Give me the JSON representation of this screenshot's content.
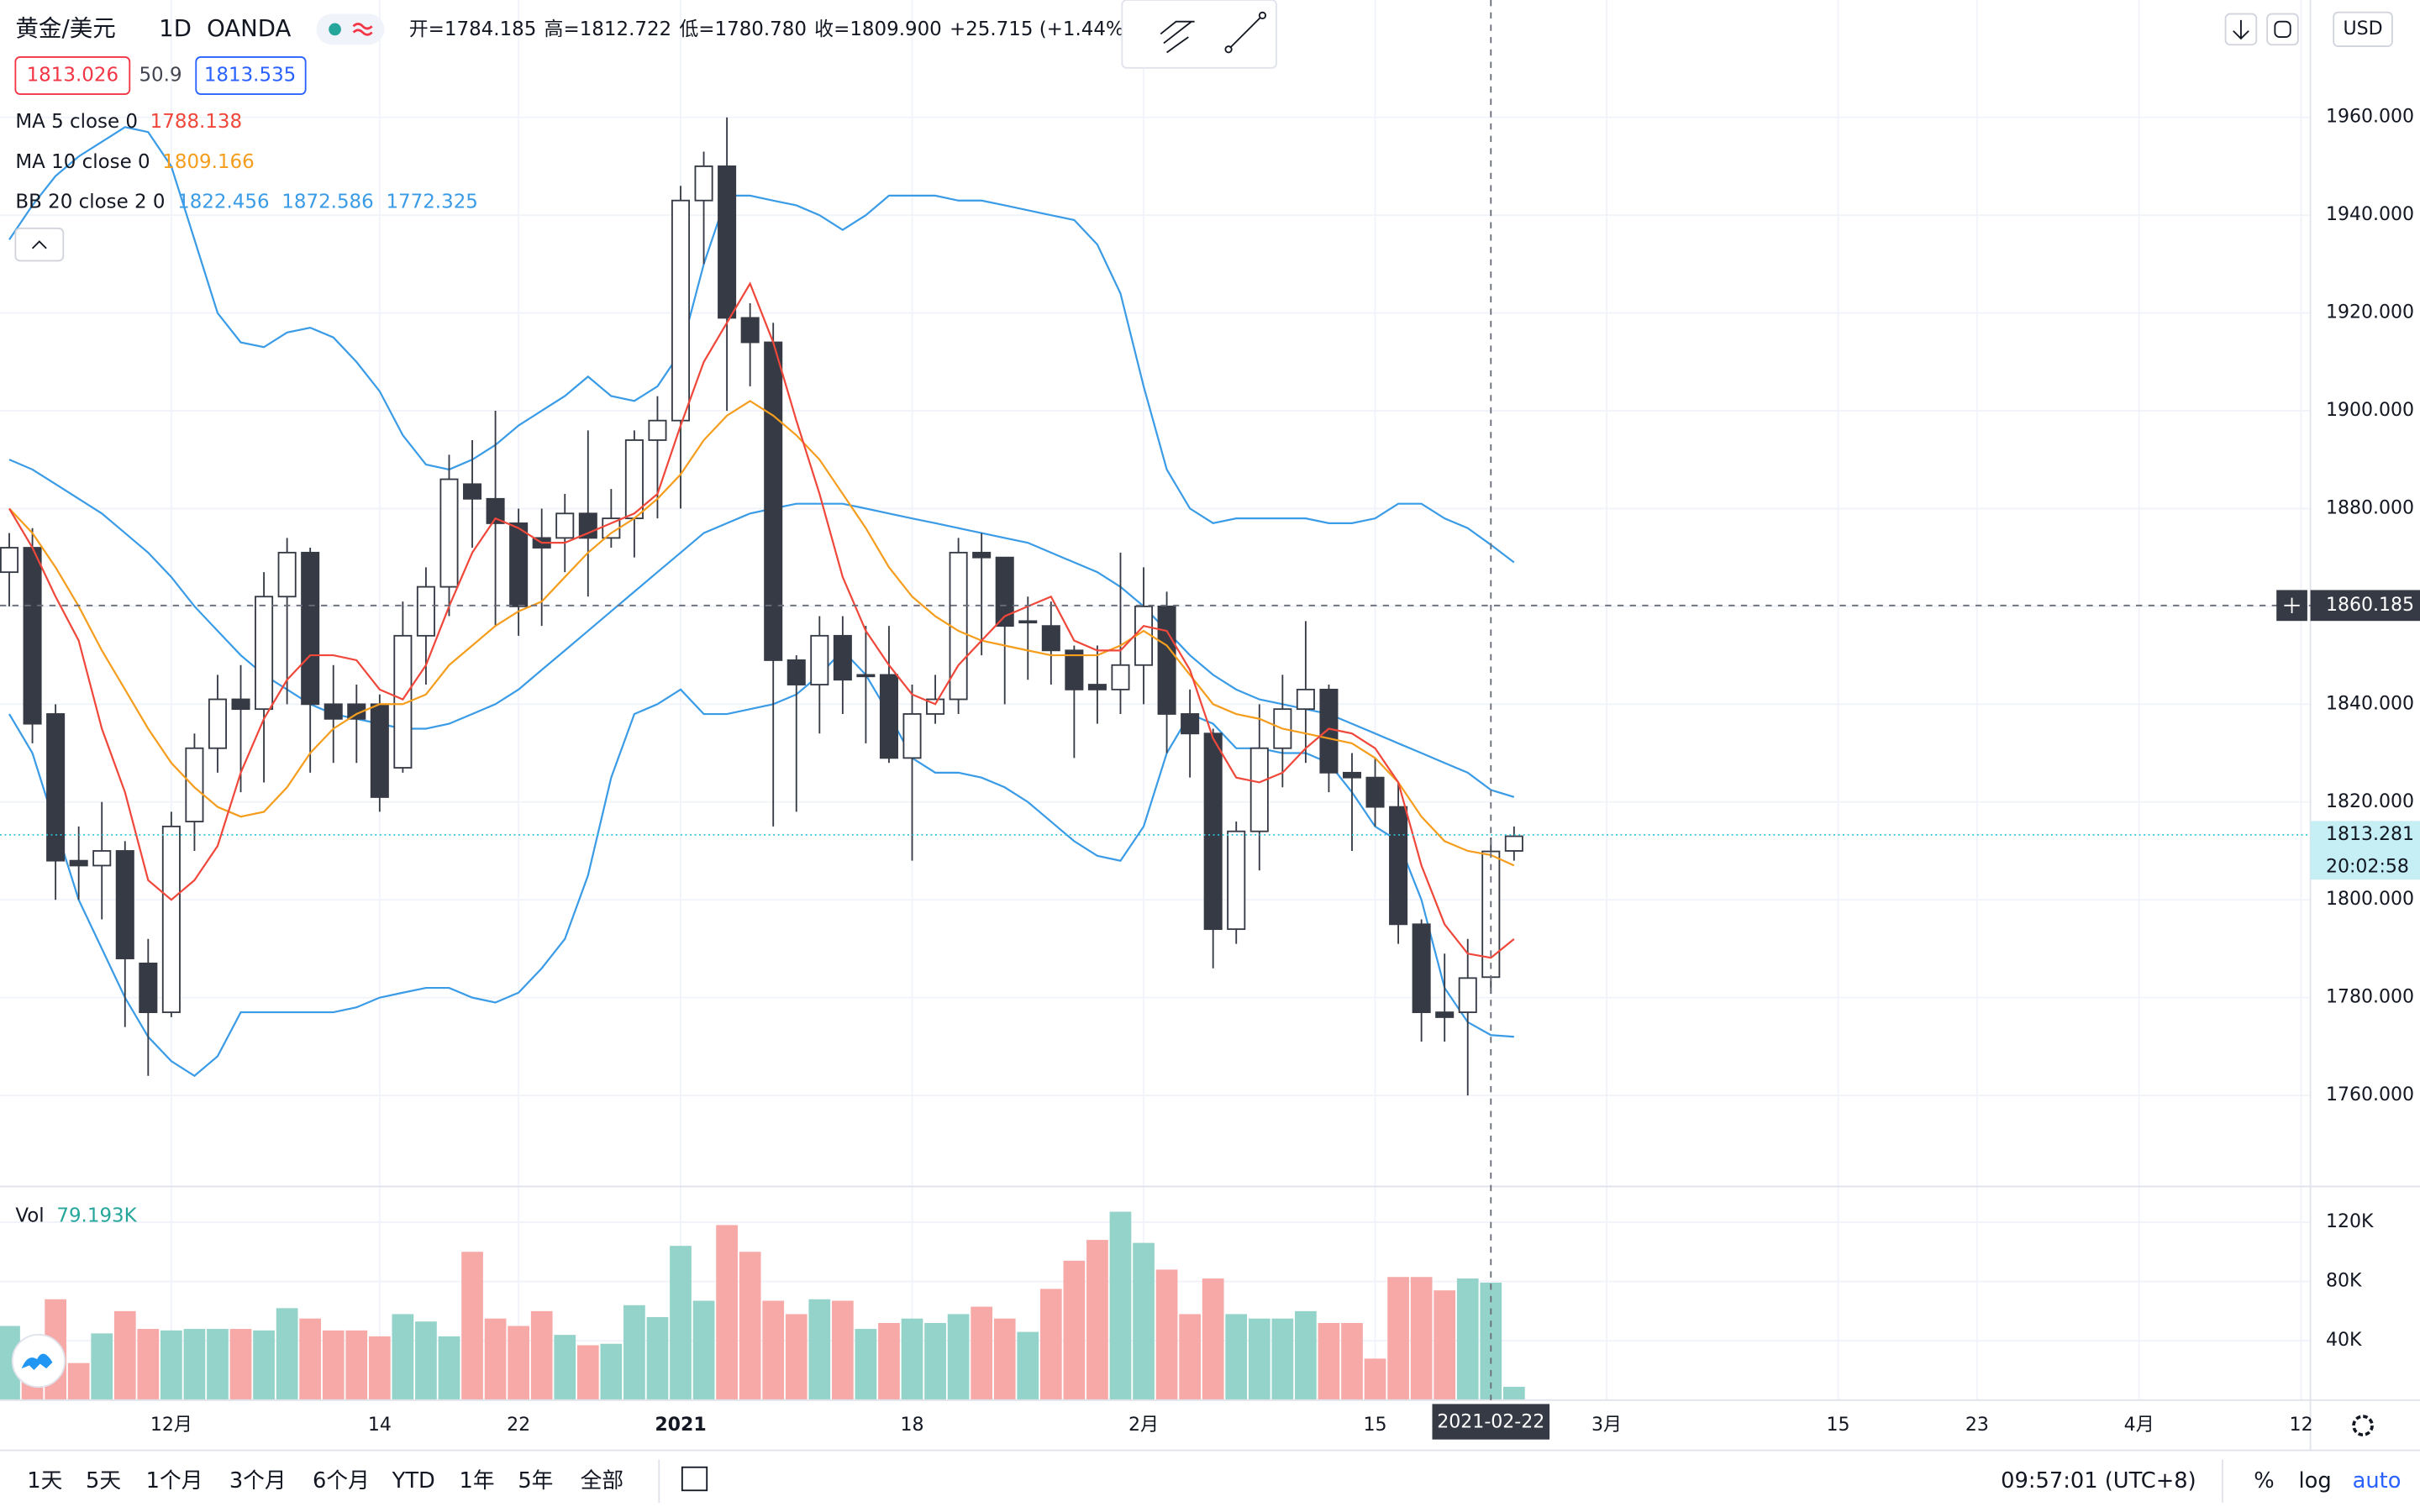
{
  "chart_data": {
    "type": "candlestick",
    "title": "黄金/美元",
    "interval": "1D",
    "source": "OANDA",
    "currency": "USD",
    "header": {
      "open_label": "开=",
      "high_label": "高=",
      "low_label": "低=",
      "close_label": "收=",
      "value_labels": {
        "open": "1784.185",
        "high": "1812.722",
        "low": "1780.780",
        "close": "1809.900"
      },
      "change_text": "+25.715 (+1.44%)"
    },
    "bid": 1813.026,
    "spread": 50.9,
    "ask": 1813.535,
    "categories": [
      null,
      null,
      null,
      null,
      null,
      null,
      null,
      "12月",
      null,
      null,
      null,
      null,
      null,
      null,
      null,
      null,
      "14",
      null,
      null,
      null,
      null,
      null,
      "22",
      null,
      null,
      null,
      null,
      null,
      null,
      "2021",
      null,
      null,
      null,
      null,
      null,
      null,
      null,
      null,
      null,
      "18",
      null,
      null,
      null,
      null,
      null,
      null,
      null,
      null,
      null,
      "2月",
      null,
      null,
      null,
      null,
      null,
      null,
      null,
      null,
      null,
      "15",
      null,
      null,
      null,
      null,
      null,
      null
    ],
    "future_ticks": [
      {
        "value": 69,
        "label": "3月"
      },
      {
        "value": 79,
        "label": "15"
      },
      {
        "value": 85,
        "label": "23"
      },
      {
        "value": 92,
        "label": "4月"
      },
      {
        "value": 99,
        "label": "12"
      }
    ],
    "xlim": [
      -0.4,
      99.4
    ],
    "open": [
      1867,
      1872,
      1838,
      1808,
      1807,
      1810,
      1787,
      1777,
      1816,
      1831,
      1841,
      1839,
      1862,
      1871,
      1840,
      1840,
      1840,
      1827,
      1854,
      1864,
      1885,
      1882,
      1877,
      1874,
      1874,
      1879,
      1874,
      1878,
      1894,
      1898,
      1943,
      1950,
      1919,
      1914,
      1849,
      1844,
      1854,
      1846,
      1846,
      1829,
      1838,
      1841,
      1871,
      1870,
      1857,
      1856,
      1851,
      1844,
      1843,
      1848,
      1860,
      1838,
      1834,
      1794,
      1814,
      1831,
      1839,
      1843,
      1826,
      1825,
      1819,
      1795,
      1777,
      1777,
      1784.185,
      1810
    ],
    "high": [
      1875,
      1876,
      1840,
      1815,
      1820,
      1812,
      1792,
      1818,
      1834,
      1846,
      1848,
      1867,
      1874,
      1872,
      1848,
      1844,
      1842,
      1861,
      1868,
      1891,
      1894,
      1900,
      1880,
      1880,
      1883,
      1896,
      1884,
      1896,
      1903,
      1946,
      1953,
      1960,
      1922,
      1918,
      1850,
      1858,
      1858,
      1856,
      1856,
      1844,
      1846,
      1874,
      1875,
      1870,
      1862,
      1861,
      1852,
      1852,
      1871,
      1868,
      1863,
      1843,
      1835,
      1816,
      1840,
      1846,
      1857,
      1844,
      1830,
      1829,
      1824,
      1796,
      1789,
      1792,
      1812.722,
      1815
    ],
    "low": [
      1860,
      1832,
      1800,
      1800,
      1796,
      1774,
      1764,
      1776,
      1810,
      1826,
      1822,
      1824,
      1840,
      1826,
      1828,
      1828,
      1818,
      1826,
      1844,
      1858,
      1872,
      1856,
      1854,
      1856,
      1867,
      1862,
      1872,
      1870,
      1878,
      1880,
      1930,
      1900,
      1905,
      1815,
      1818,
      1834,
      1838,
      1832,
      1828,
      1808,
      1836,
      1838,
      1850,
      1840,
      1845,
      1844,
      1829,
      1836,
      1838,
      1840,
      1830,
      1825,
      1786,
      1791,
      1806,
      1823,
      1828,
      1822,
      1810,
      1815,
      1791,
      1771,
      1771,
      1760,
      1780.78,
      1808
    ],
    "close": [
      1872,
      1836,
      1808,
      1807,
      1810,
      1788,
      1777,
      1815,
      1831,
      1841,
      1839,
      1862,
      1871,
      1840,
      1837,
      1837,
      1821,
      1854,
      1864,
      1886,
      1882,
      1877,
      1860,
      1872,
      1879,
      1874,
      1878,
      1894,
      1898,
      1943,
      1950,
      1919,
      1914,
      1849,
      1844,
      1854,
      1845,
      1846,
      1829,
      1838,
      1841,
      1871,
      1870,
      1856,
      1857,
      1851,
      1843,
      1843,
      1848,
      1860,
      1838,
      1834,
      1794,
      1814,
      1831,
      1839,
      1843,
      1826,
      1825,
      1819,
      1795,
      1777,
      1776,
      1784,
      1809.9,
      1813
    ],
    "up_color": "#ffffff",
    "down_color": "#363a45",
    "candle_border": "#363a45",
    "ylim": [
      1741.7,
      1984
    ],
    "yticks": [
      {
        "value": 1760,
        "label": "1760.000"
      },
      {
        "value": 1780,
        "label": "1780.000"
      },
      {
        "value": 1800,
        "label": "1800.000"
      },
      {
        "value": 1820,
        "label": "1820.000"
      },
      {
        "value": 1840,
        "label": "1840.000"
      },
      {
        "value": 1860,
        "label": "1860.000"
      },
      {
        "value": 1880,
        "label": "1880.000"
      },
      {
        "value": 1900,
        "label": "1900.000"
      },
      {
        "value": 1920,
        "label": "1920.000"
      },
      {
        "value": 1940,
        "label": "1940.000"
      },
      {
        "value": 1960,
        "label": "1960.000"
      }
    ],
    "grid": true,
    "series": [
      {
        "name": "MA 5 close 0",
        "color": "#f0473b",
        "values": [
          1880,
          1872,
          1862,
          1853,
          1835,
          1822,
          1804,
          1800,
          1804,
          1811,
          1826,
          1837,
          1845,
          1850,
          1850,
          1849,
          1843,
          1841,
          1848,
          1860,
          1871,
          1878,
          1876,
          1873,
          1873,
          1875,
          1877,
          1879,
          1883,
          1897,
          1910,
          1918,
          1926,
          1914,
          1898,
          1883,
          1866,
          1855,
          1848,
          1842,
          1840,
          1848,
          1853,
          1858,
          1860,
          1862,
          1853,
          1851,
          1851,
          1856,
          1855,
          1847,
          1833,
          1825,
          1824,
          1826,
          1831,
          1835,
          1834,
          1831,
          1824,
          1807,
          1795,
          1789,
          1788.138,
          1792
        ]
      },
      {
        "name": "MA 10 close 0",
        "color": "#f59d1c",
        "values": [
          1880,
          1875,
          1868,
          1860,
          1851,
          1843,
          1835,
          1828,
          1823,
          1819,
          1817,
          1818,
          1823,
          1830,
          1835,
          1838,
          1840,
          1840,
          1842,
          1848,
          1852,
          1856,
          1859,
          1861,
          1866,
          1871,
          1875,
          1878,
          1882,
          1887,
          1894,
          1899,
          1902,
          1899,
          1895,
          1890,
          1883,
          1876,
          1868,
          1862,
          1858,
          1855,
          1853,
          1852,
          1851,
          1850,
          1850,
          1850,
          1852,
          1855,
          1852,
          1846,
          1840,
          1838,
          1837,
          1835,
          1834,
          1833,
          1832,
          1829,
          1824,
          1817,
          1812,
          1810,
          1809.166,
          1807
        ]
      },
      {
        "name": "BB 20 close 2 0",
        "color": "#3a9be6",
        "values": [
          1890,
          1888,
          1885,
          1882,
          1879,
          1875,
          1871,
          1866,
          1860,
          1855,
          1850,
          1846,
          1843,
          1840,
          1838,
          1837,
          1836,
          1835,
          1835,
          1836,
          1838,
          1840,
          1843,
          1847,
          1851,
          1855,
          1859,
          1863,
          1867,
          1871,
          1875,
          1877,
          1879,
          1880,
          1881,
          1881,
          1881,
          1880,
          1879,
          1878,
          1877,
          1876,
          1875,
          1874,
          1873,
          1871,
          1869,
          1867,
          1864,
          1860,
          1855,
          1850,
          1846,
          1843,
          1841,
          1840,
          1839,
          1838,
          1836,
          1834,
          1832,
          1830,
          1828,
          1826,
          1822.456,
          1821
        ],
        "upper": [
          1935,
          1942,
          1948,
          1952,
          1955,
          1958,
          1957,
          1950,
          1935,
          1920,
          1914,
          1913,
          1916,
          1917,
          1915,
          1910,
          1904,
          1895,
          1889,
          1888,
          1890,
          1893,
          1897,
          1900,
          1903,
          1907,
          1903,
          1902,
          1905,
          1912,
          1930,
          1944,
          1944,
          1943,
          1942,
          1940,
          1937,
          1940,
          1944,
          1944,
          1944,
          1943,
          1943,
          1942,
          1941,
          1940,
          1939,
          1934,
          1924,
          1905,
          1888,
          1880,
          1877,
          1878,
          1878,
          1878,
          1878,
          1877,
          1877,
          1878,
          1881,
          1881,
          1878,
          1876,
          1872.586,
          1869
        ],
        "lower": [
          1838,
          1830,
          1815,
          1800,
          1790,
          1780,
          1772,
          1767,
          1764,
          1768,
          1777,
          1777,
          1777,
          1777,
          1777,
          1778,
          1780,
          1781,
          1782,
          1782,
          1780,
          1779,
          1781,
          1786,
          1792,
          1805,
          1825,
          1838,
          1840,
          1843,
          1838,
          1838,
          1839,
          1840,
          1842,
          1846,
          1851,
          1846,
          1838,
          1829,
          1826,
          1826,
          1825,
          1823,
          1820,
          1816,
          1812,
          1809,
          1808,
          1815,
          1830,
          1838,
          1836,
          1831,
          1831,
          1830,
          1830,
          1828,
          1822,
          1815,
          1812,
          1800,
          1782,
          1775,
          1772.325,
          1772
        ]
      }
    ],
    "volume": {
      "name": "Vol",
      "value_label": "79.193K",
      "up_color": "#94d3c9",
      "down_color": "#f6a9a7",
      "values": [
        50000,
        40000,
        68000,
        25000,
        45000,
        60000,
        48000,
        47000,
        48000,
        48000,
        48000,
        47000,
        62000,
        55000,
        47000,
        47000,
        43000,
        58000,
        53000,
        43000,
        100000,
        55000,
        50000,
        60000,
        44000,
        37000,
        38000,
        64000,
        56000,
        104000,
        67000,
        118000,
        100000,
        67000,
        58000,
        68000,
        67000,
        48000,
        52000,
        55000,
        52000,
        58000,
        63000,
        55000,
        46000,
        75000,
        94000,
        108000,
        127000,
        106000,
        88000,
        58000,
        82000,
        58000,
        55000,
        55000,
        60000,
        52000,
        52000,
        28000,
        83000,
        83000,
        74000,
        82000,
        79193,
        9000
      ],
      "ylim": [
        0,
        143000
      ],
      "yticks": [
        {
          "value": 40000,
          "label": "40K"
        },
        {
          "value": 80000,
          "label": "80K"
        },
        {
          "value": 120000,
          "label": "120K"
        }
      ]
    },
    "last_price": 1813.281,
    "countdown": "20:02:58",
    "crosshair": {
      "index": 64,
      "date_label": "2021-02-22",
      "price": 1860.185
    },
    "ranges": [
      "1天",
      "5天",
      "1个月",
      "3个月",
      "6个月",
      "YTD",
      "1年",
      "5年",
      "全部"
    ],
    "clock": "09:57:01 (UTC+8)",
    "scale_buttons": [
      "%",
      "log",
      "auto"
    ]
  }
}
